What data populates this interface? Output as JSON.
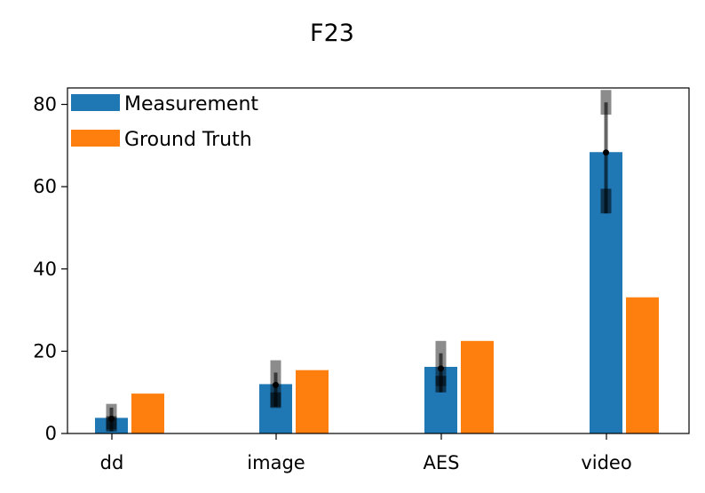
{
  "chart_data": {
    "type": "bar",
    "title": "F23",
    "categories": [
      "dd",
      "image",
      "AES",
      "video"
    ],
    "ylim": [
      0,
      84
    ],
    "yticks": [
      0,
      20,
      40,
      60,
      80
    ],
    "grid": false,
    "legend_position": "upper-left",
    "series": [
      {
        "name": "Measurement",
        "color": "#1f77b4",
        "values": [
          3.8,
          12.0,
          16.2,
          68.4
        ]
      },
      {
        "name": "Ground Truth",
        "color": "#ff7f0e",
        "values": [
          9.7,
          15.4,
          22.5,
          33.1
        ]
      }
    ],
    "error_bars": {
      "series": "Measurement",
      "color": "#000000",
      "point_estimates": [
        3.6,
        11.8,
        15.8,
        68.3
      ],
      "outer_ranges": [
        [
          1.0,
          7.2
        ],
        [
          6.5,
          17.8
        ],
        [
          11.5,
          22.5
        ],
        [
          77.5,
          83.5
        ]
      ],
      "inner_ranges": [
        [
          0.5,
          6.3
        ],
        [
          6.5,
          14.8
        ],
        [
          10.0,
          19.5
        ],
        [
          53.5,
          80.5
        ]
      ],
      "thick_boxes": [
        [
          0.5,
          4.2
        ],
        [
          6.2,
          10.0
        ],
        [
          10.0,
          14.0
        ],
        [
          53.5,
          59.5
        ]
      ]
    }
  }
}
